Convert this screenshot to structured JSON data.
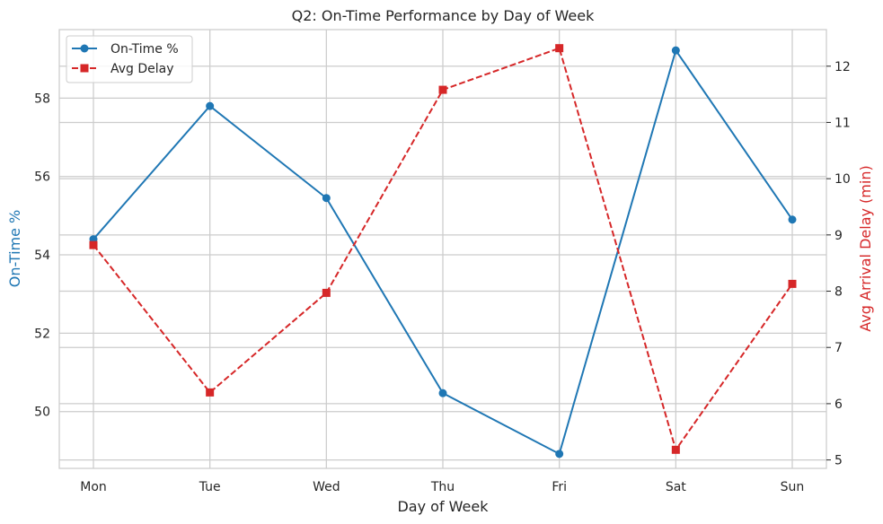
{
  "chart_data": {
    "type": "line",
    "title": "Q2: On-Time Performance by Day of Week",
    "xlabel": "Day of Week",
    "ylabel": "On-Time %",
    "y2label": "Avg Arrival Delay (min)",
    "categories": [
      "Mon",
      "Tue",
      "Wed",
      "Thu",
      "Fri",
      "Sat",
      "Sun"
    ],
    "series": [
      {
        "name": "On-Time %",
        "axis": "left",
        "color": "#1f77b4",
        "marker": "circle",
        "line_style": "solid",
        "values": [
          54.4,
          57.8,
          55.45,
          50.47,
          48.92,
          59.22,
          54.9
        ]
      },
      {
        "name": "Avg Delay",
        "axis": "right",
        "color": "#d62728",
        "marker": "square",
        "line_style": "dashed",
        "values": [
          8.82,
          6.2,
          7.97,
          11.58,
          12.32,
          5.18,
          8.13
        ]
      }
    ],
    "ylim": [
      48.55,
      59.75
    ],
    "y2lim": [
      4.85,
      12.65
    ],
    "yticks": [
      50,
      52,
      54,
      56,
      58
    ],
    "y2ticks": [
      5,
      6,
      7,
      8,
      9,
      10,
      11,
      12
    ],
    "grid": true,
    "legend_position": "top-left",
    "left_axis_color": "#1f77b4",
    "right_axis_color": "#d62728"
  }
}
